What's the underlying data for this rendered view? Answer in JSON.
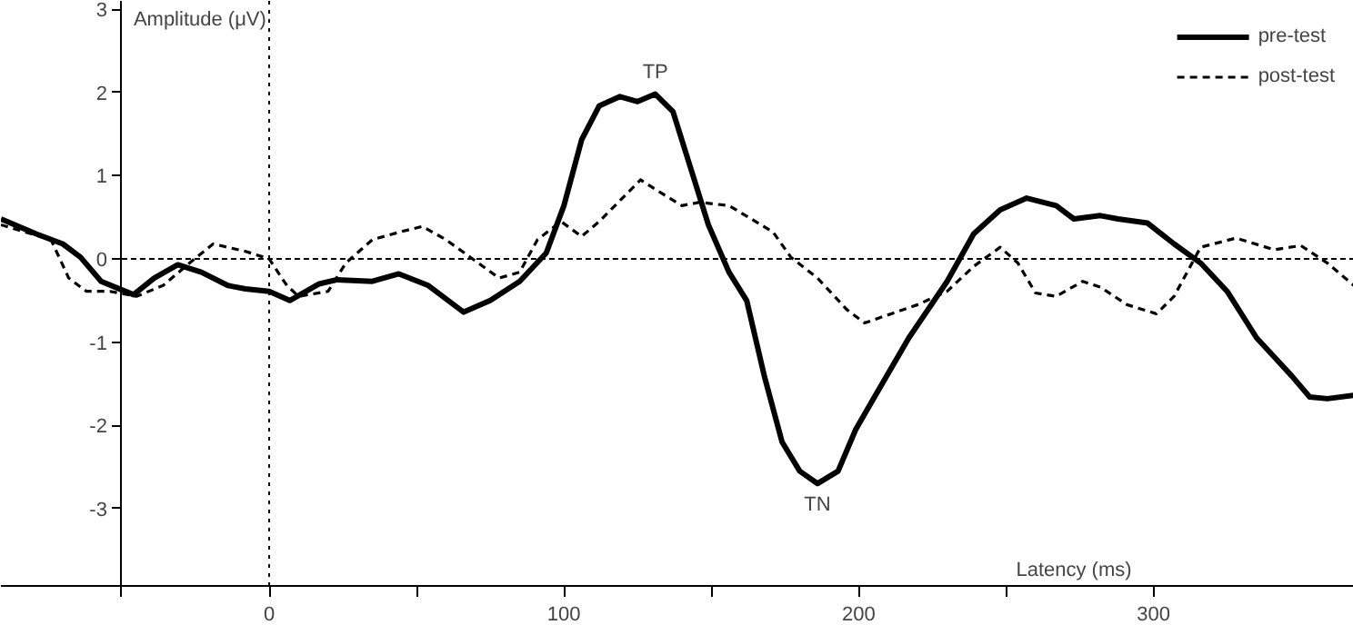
{
  "chart_data": {
    "type": "line",
    "xlabel": "Latency (ms)",
    "ylabel": "Amplitude (μV)",
    "xlim": [
      -91,
      368
    ],
    "ylim": [
      -3.93,
      3.1
    ],
    "xticks": [
      {
        "value": -50,
        "label": null
      },
      0,
      {
        "value": 50,
        "label": null
      },
      100,
      {
        "value": 150,
        "label": null
      },
      200,
      {
        "value": 250,
        "label": null
      },
      300
    ],
    "yticks": [
      -3,
      -2,
      -1,
      0,
      1,
      2,
      3
    ],
    "grid": false,
    "legend": "top right",
    "ref_lines": [
      {
        "axis": "x",
        "value": 0,
        "label": null,
        "line_style": "dotted",
        "color": "#000000"
      },
      {
        "axis": "y",
        "value": 0,
        "label": null,
        "line_style": "dashed",
        "color": "#000000"
      }
    ],
    "annotations": [
      "TP",
      "TN"
    ],
    "series": [
      {
        "name": "pre-test",
        "color": "#000000",
        "line_style": "solid",
        "x": [
          -91,
          -79,
          -70,
          -64,
          -57,
          -46,
          -39,
          -31,
          -23,
          -14,
          -8,
          0,
          7,
          17,
          23,
          35,
          44,
          54,
          66,
          75,
          85,
          94,
          100,
          106,
          112,
          119,
          125,
          131,
          137,
          143,
          149,
          156,
          162,
          168,
          174,
          180,
          186,
          193,
          199,
          205,
          217,
          230,
          239,
          248,
          257,
          267,
          273,
          282,
          288,
          298,
          307,
          316,
          325,
          335,
          341,
          347,
          353,
          359,
          368
        ],
        "values": [
          0.48,
          0.3,
          0.18,
          0.02,
          -0.27,
          -0.43,
          -0.23,
          -0.07,
          -0.16,
          -0.32,
          -0.36,
          -0.39,
          -0.5,
          -0.3,
          -0.25,
          -0.27,
          -0.18,
          -0.32,
          -0.64,
          -0.5,
          -0.27,
          0.07,
          0.64,
          1.43,
          1.84,
          1.95,
          1.89,
          1.98,
          1.77,
          1.09,
          0.41,
          -0.16,
          -0.5,
          -1.41,
          -2.2,
          -2.55,
          -2.7,
          -2.55,
          -2.05,
          -1.68,
          -0.95,
          -0.27,
          0.3,
          0.59,
          0.73,
          0.64,
          0.48,
          0.52,
          0.48,
          0.43,
          0.18,
          -0.05,
          -0.39,
          -0.95,
          -1.18,
          -1.41,
          -1.66,
          -1.68,
          -1.64
        ]
      },
      {
        "name": "post-test",
        "color": "#000000",
        "line_style": "dashed",
        "x": [
          -91,
          -74,
          -68,
          -62,
          -54,
          -45,
          -36,
          -27,
          -19,
          -8,
          0,
          6,
          10,
          20,
          26,
          35,
          44,
          52,
          60,
          69,
          78,
          85,
          91,
          99,
          106,
          112,
          126,
          134,
          140,
          146,
          156,
          165,
          171,
          177,
          186,
          196,
          202,
          211,
          220,
          230,
          239,
          248,
          254,
          260,
          267,
          276,
          282,
          291,
          301,
          307,
          316,
          328,
          341,
          350,
          359,
          368
        ],
        "values": [
          0.41,
          0.23,
          -0.23,
          -0.39,
          -0.39,
          -0.45,
          -0.32,
          -0.05,
          0.18,
          0.09,
          0,
          -0.32,
          -0.45,
          -0.39,
          -0.05,
          0.23,
          0.32,
          0.39,
          0.23,
          0,
          -0.23,
          -0.16,
          0.23,
          0.45,
          0.27,
          0.45,
          0.95,
          0.77,
          0.64,
          0.68,
          0.64,
          0.45,
          0.32,
          0.02,
          -0.23,
          -0.61,
          -0.77,
          -0.66,
          -0.55,
          -0.39,
          -0.09,
          0.14,
          -0.05,
          -0.41,
          -0.45,
          -0.27,
          -0.34,
          -0.55,
          -0.66,
          -0.45,
          0.14,
          0.25,
          0.11,
          0.16,
          -0.05,
          -0.32
        ]
      }
    ]
  }
}
